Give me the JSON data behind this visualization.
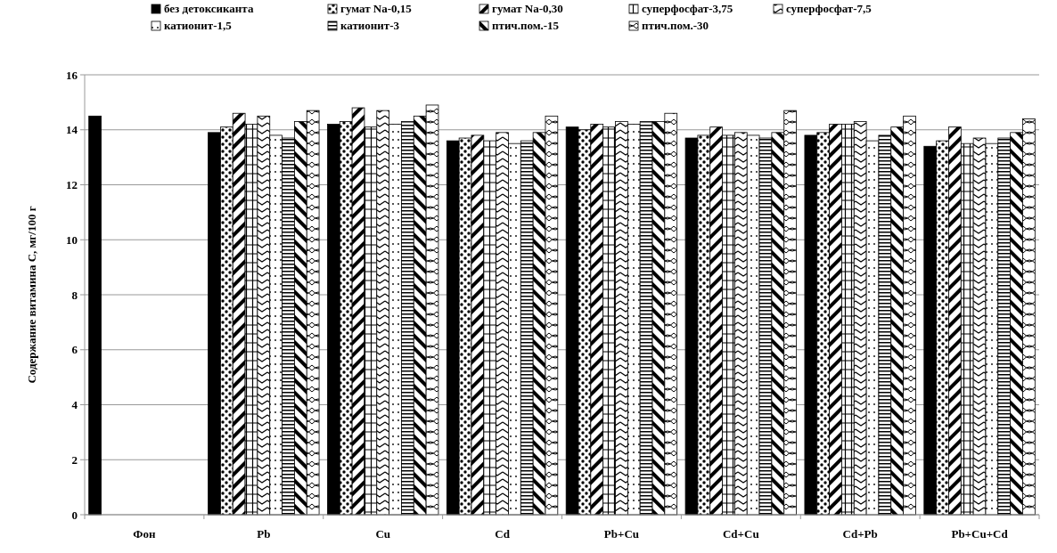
{
  "chart_data": {
    "type": "bar",
    "ylabel": "Содержание витамина С, мг/100 г",
    "categories": [
      "Фон",
      "Pb",
      "Cu",
      "Cd",
      "Pb+Cu",
      "Cd+Cu",
      "Cd+Pb",
      "Pb+Cu+Cd"
    ],
    "series": [
      {
        "name": "без детоксиканта",
        "color": "#000000",
        "values": [
          14.5,
          13.9,
          14.2,
          13.6,
          14.1,
          13.7,
          13.8,
          13.4
        ]
      },
      {
        "name": "гумат Na-0,15",
        "color": "#000000",
        "values": [
          null,
          14.1,
          14.3,
          13.7,
          14.0,
          13.8,
          13.9,
          13.6
        ]
      },
      {
        "name": "гумат Na-0,30",
        "color": "#000000",
        "values": [
          null,
          14.6,
          14.8,
          13.8,
          14.2,
          14.1,
          14.2,
          14.1
        ]
      },
      {
        "name": "суперфосфат-3,75",
        "color": "#000000",
        "values": [
          null,
          14.2,
          14.1,
          13.6,
          14.1,
          13.8,
          14.2,
          13.5
        ]
      },
      {
        "name": "суперфосфат-7,5",
        "color": "#000000",
        "values": [
          null,
          14.5,
          14.7,
          13.9,
          14.3,
          13.9,
          14.3,
          13.7
        ]
      },
      {
        "name": "катионит-1,5",
        "color": "#000000",
        "values": [
          null,
          13.8,
          14.2,
          13.5,
          14.2,
          13.8,
          13.6,
          13.5
        ]
      },
      {
        "name": "катионит-3",
        "color": "#000000",
        "values": [
          null,
          13.7,
          14.3,
          13.6,
          14.3,
          13.7,
          13.8,
          13.7
        ]
      },
      {
        "name": "птич.пом.-15",
        "color": "#000000",
        "values": [
          null,
          14.3,
          14.5,
          13.9,
          14.3,
          13.9,
          14.1,
          13.9
        ]
      },
      {
        "name": "птич.пом.-30",
        "color": "#000000",
        "values": [
          null,
          14.7,
          14.9,
          14.5,
          14.6,
          14.7,
          14.5,
          14.4
        ]
      }
    ],
    "ylim": [
      0,
      16
    ],
    "yticks": [
      0,
      2,
      4,
      6,
      8,
      10,
      12,
      14,
      16
    ],
    "grid": "y",
    "legend": "top"
  }
}
